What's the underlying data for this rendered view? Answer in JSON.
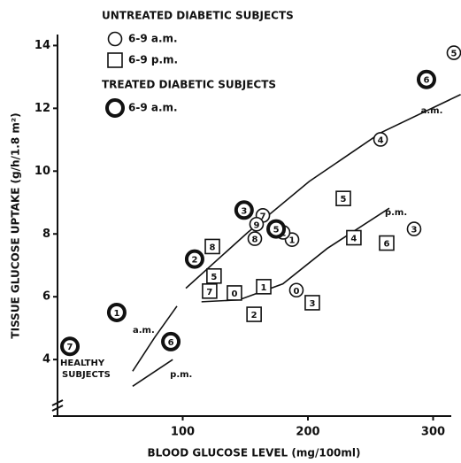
{
  "chart_data": {
    "type": "scatter",
    "x_label": "BLOOD GLUCOSE LEVEL (mg/100ml)",
    "y_label": "TISSUE GLUCOSE UPTAKE (g/h/1.8 m²)",
    "xlim": [
      0,
      314.5
    ],
    "ylim": [
      2.2,
      14.35
    ],
    "xticks": [
      100,
      200,
      300
    ],
    "yticks": [
      4,
      6,
      8,
      10,
      12,
      14
    ],
    "groups": [
      {
        "title": "UNTREATED DIABETIC SUBJECTS",
        "series": [
          {
            "name": "6-9 a.m.",
            "marker": "circle",
            "color": "#111",
            "x": [
              316.6,
              258,
              284.8,
              187.3,
              190.8,
              164,
              159,
              157.6,
              180.2
            ],
            "values": [
              13.77,
              11.01,
              8.16,
              7.82,
              6.21,
              8.59,
              8.31,
              7.85,
              8.05
            ],
            "point_labels": [
              "5",
              "4",
              "3",
              "1",
              "0",
              "7",
              "9",
              "8",
              "2"
            ]
          },
          {
            "name": "6-9 p.m.",
            "marker": "square",
            "color": "#111",
            "x": [
              123.7,
              125,
              121.5,
              141.3,
              164.7,
              157,
              203.5,
              236.7,
              228.3,
              262.9
            ],
            "values": [
              7.6,
              6.66,
              6.18,
              6.12,
              6.32,
              5.44,
              5.81,
              7.88,
              9.13,
              7.71
            ],
            "point_labels": [
              "8",
              "5",
              "7",
              "0",
              "1",
              "2",
              "3",
              "4",
              "5",
              "6"
            ]
          }
        ]
      },
      {
        "title": "TREATED DIABETIC SUBJECTS",
        "series": [
          {
            "name": "6-9 a.m.",
            "marker": "bold-circle",
            "color": "#111",
            "x": [
              294.7,
              9.9,
              47.3,
              90.5,
              109.5,
              149,
              174.6
            ],
            "values": [
              12.92,
              4.42,
              5.5,
              4.57,
              7.2,
              8.76,
              8.16
            ],
            "point_labels": [
              "6",
              "7",
              "1",
              "6",
              "2",
              "3",
              "5"
            ]
          }
        ]
      }
    ],
    "curves": [
      {
        "label": "a.m.",
        "x": [
          102.5,
          152,
          201,
          258,
          322
        ],
        "values": [
          6.27,
          8.05,
          9.67,
          11.22,
          12.44
        ]
      },
      {
        "label": "p.m.",
        "x": [
          115,
          145,
          180,
          215.5,
          265
        ],
        "values": [
          5.84,
          5.9,
          6.41,
          7.54,
          8.82
        ]
      },
      {
        "label": "a.m.",
        "x": [
          60,
          77.7,
          95.4
        ],
        "values": [
          3.63,
          4.71,
          5.7
        ]
      },
      {
        "label": "p.m.",
        "x": [
          60,
          92
        ],
        "values": [
          3.15,
          4.0
        ]
      }
    ],
    "healthy_label": [
      "HEALTHY",
      "SUBJECTS"
    ]
  }
}
